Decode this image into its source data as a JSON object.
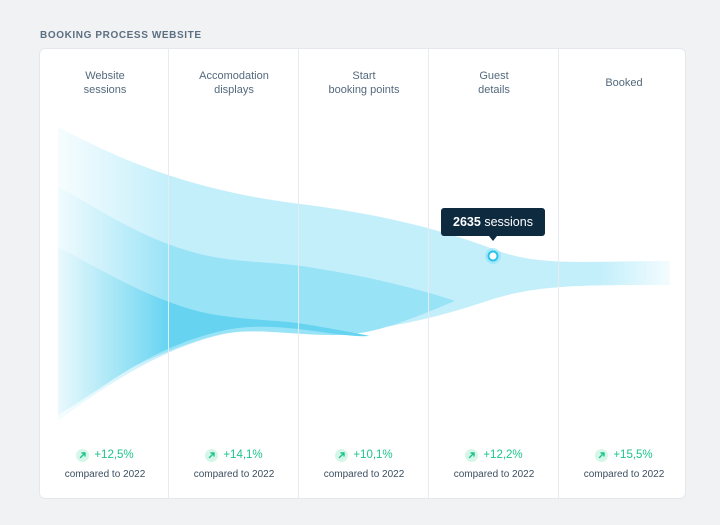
{
  "page_title": "BOOKING PROCESS WEBSITE",
  "tooltip": {
    "value": "2635",
    "unit": "sessions"
  },
  "colors": {
    "band_light": "#bfeefb",
    "band_mid": "#93e2f7",
    "band_dark": "#5fd2f1",
    "positive": "#1cc48a",
    "tooltip_bg": "#0e2a3f"
  },
  "chart_data": {
    "type": "area",
    "title": "BOOKING PROCESS WEBSITE",
    "categories": [
      "Website sessions",
      "Accomodation displays",
      "Start booking points",
      "Guest details",
      "Booked"
    ],
    "highlight": {
      "stage": "Guest details",
      "value": 2635,
      "label": "2635 sessions"
    },
    "changes": [
      {
        "stage": "Website sessions",
        "change": "+12,5%",
        "compare": "compared to 2022"
      },
      {
        "stage": "Accomodation displays",
        "change": "+14,1%",
        "compare": "compared to 2022"
      },
      {
        "stage": "Start booking points",
        "change": "+10,1%",
        "compare": "compared to 2022"
      },
      {
        "stage": "Guest details",
        "change": "+12,2%",
        "compare": "compared to 2022"
      },
      {
        "stage": "Booked",
        "change": "+15,5%",
        "compare": "compared to 2022"
      }
    ]
  },
  "stages": [
    {
      "label": "Website\nsessions",
      "change": "+12,5%",
      "compare": "compared to 2022"
    },
    {
      "label": "Accomodation\ndisplays",
      "change": "+14,1%",
      "compare": "compared to 2022"
    },
    {
      "label": "Start\nbooking points",
      "change": "+10,1%",
      "compare": "compared to 2022"
    },
    {
      "label": "Guest\ndetails",
      "change": "+12,2%",
      "compare": "compared to 2022"
    },
    {
      "label": "Booked",
      "change": "+15,5%",
      "compare": "compared to 2022"
    }
  ]
}
